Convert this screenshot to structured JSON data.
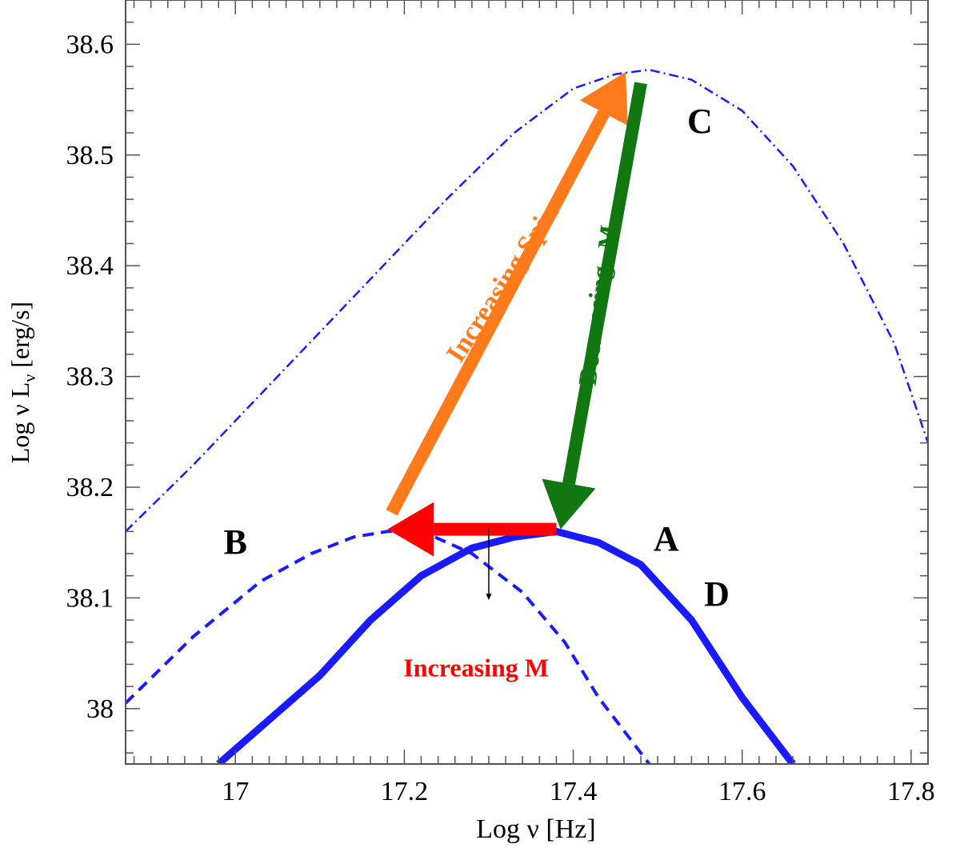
{
  "chart_data": {
    "type": "line",
    "xlabel": "Log ν  [Hz]",
    "ylabel": "Log ν L",
    "ylabel_sub": "ν",
    "ylabel_unit": "  [erg/s]",
    "xlim": [
      16.87,
      17.82
    ],
    "ylim": [
      37.95,
      38.64
    ],
    "xticks": [
      17,
      17.2,
      17.4,
      17.6,
      17.8
    ],
    "xtick_labels": [
      "17",
      "17.2",
      "17.4",
      "17.6",
      "17.8"
    ],
    "yticks": [
      38,
      38.1,
      38.2,
      38.3,
      38.4,
      38.5,
      38.6
    ],
    "ytick_labels": [
      "38",
      "38.1",
      "38.2",
      "38.3",
      "38.4",
      "38.5",
      "38.6"
    ],
    "grid": false,
    "legend": "none",
    "series": [
      {
        "name": "C",
        "style": "dashdot",
        "color": "#1a1aff",
        "x": [
          16.87,
          16.95,
          17.05,
          17.15,
          17.25,
          17.33,
          17.4,
          17.45,
          17.49,
          17.54,
          17.6,
          17.66,
          17.72,
          17.78,
          17.82
        ],
        "y": [
          38.16,
          38.22,
          38.3,
          38.38,
          38.46,
          38.52,
          38.56,
          38.573,
          38.577,
          38.568,
          38.54,
          38.49,
          38.42,
          38.33,
          38.24
        ]
      },
      {
        "name": "B",
        "style": "dashed",
        "color": "#1a1aff",
        "x": [
          16.87,
          16.95,
          17.03,
          17.09,
          17.14,
          17.18,
          17.2,
          17.23,
          17.28,
          17.34,
          17.39,
          17.43,
          17.47,
          17.49
        ],
        "y": [
          38.005,
          38.065,
          38.115,
          38.14,
          38.155,
          38.16,
          38.16,
          38.157,
          38.14,
          38.105,
          38.06,
          38.01,
          37.97,
          37.95
        ]
      },
      {
        "name": "A",
        "style": "solid",
        "color": "#1a1aff",
        "x": [
          16.98,
          17.04,
          17.1,
          17.16,
          17.22,
          17.28,
          17.33,
          17.38,
          17.43,
          17.48,
          17.54,
          17.6,
          17.66
        ],
        "y": [
          37.95,
          37.99,
          38.03,
          38.08,
          38.12,
          38.145,
          38.155,
          38.16,
          38.15,
          38.13,
          38.08,
          38.01,
          37.95
        ]
      }
    ],
    "annotations": [
      {
        "label": "A",
        "x": 17.51,
        "y": 38.143
      },
      {
        "label": "B",
        "x": 17.0,
        "y": 38.14
      },
      {
        "label": "C",
        "x": 17.55,
        "y": 38.52
      },
      {
        "label": "D",
        "x": 17.57,
        "y": 38.093
      },
      {
        "label": "Increasing Spin",
        "x": 17.325,
        "y": 38.38,
        "color": "#ff7a1a"
      },
      {
        "label": "Decreasing",
        "x": 17.435,
        "y": 38.345,
        "color": "#117711"
      },
      {
        "label": "M",
        "x": 17.451,
        "y": 38.425,
        "color": "#117711"
      },
      {
        "label": "Increasing M",
        "x": 17.285,
        "y": 38.029,
        "color": "#ff0000"
      }
    ],
    "arrows": [
      {
        "name": "increasing-spin-arrow",
        "from": [
          17.185,
          38.177
        ],
        "to": [
          17.462,
          38.575
        ],
        "color": "#ff7a1a"
      },
      {
        "name": "decreasing-mdot-arrow",
        "from": [
          17.48,
          38.565
        ],
        "to": [
          17.385,
          38.162
        ],
        "color": "#117711"
      },
      {
        "name": "increasing-m-arrow",
        "from": [
          17.38,
          38.162
        ],
        "to": [
          17.18,
          38.162
        ],
        "color": "#ff0000"
      },
      {
        "name": "increasing-m-pointer",
        "from": [
          17.3,
          38.162
        ],
        "to": [
          17.3,
          38.098
        ],
        "color": "#000000"
      }
    ]
  }
}
